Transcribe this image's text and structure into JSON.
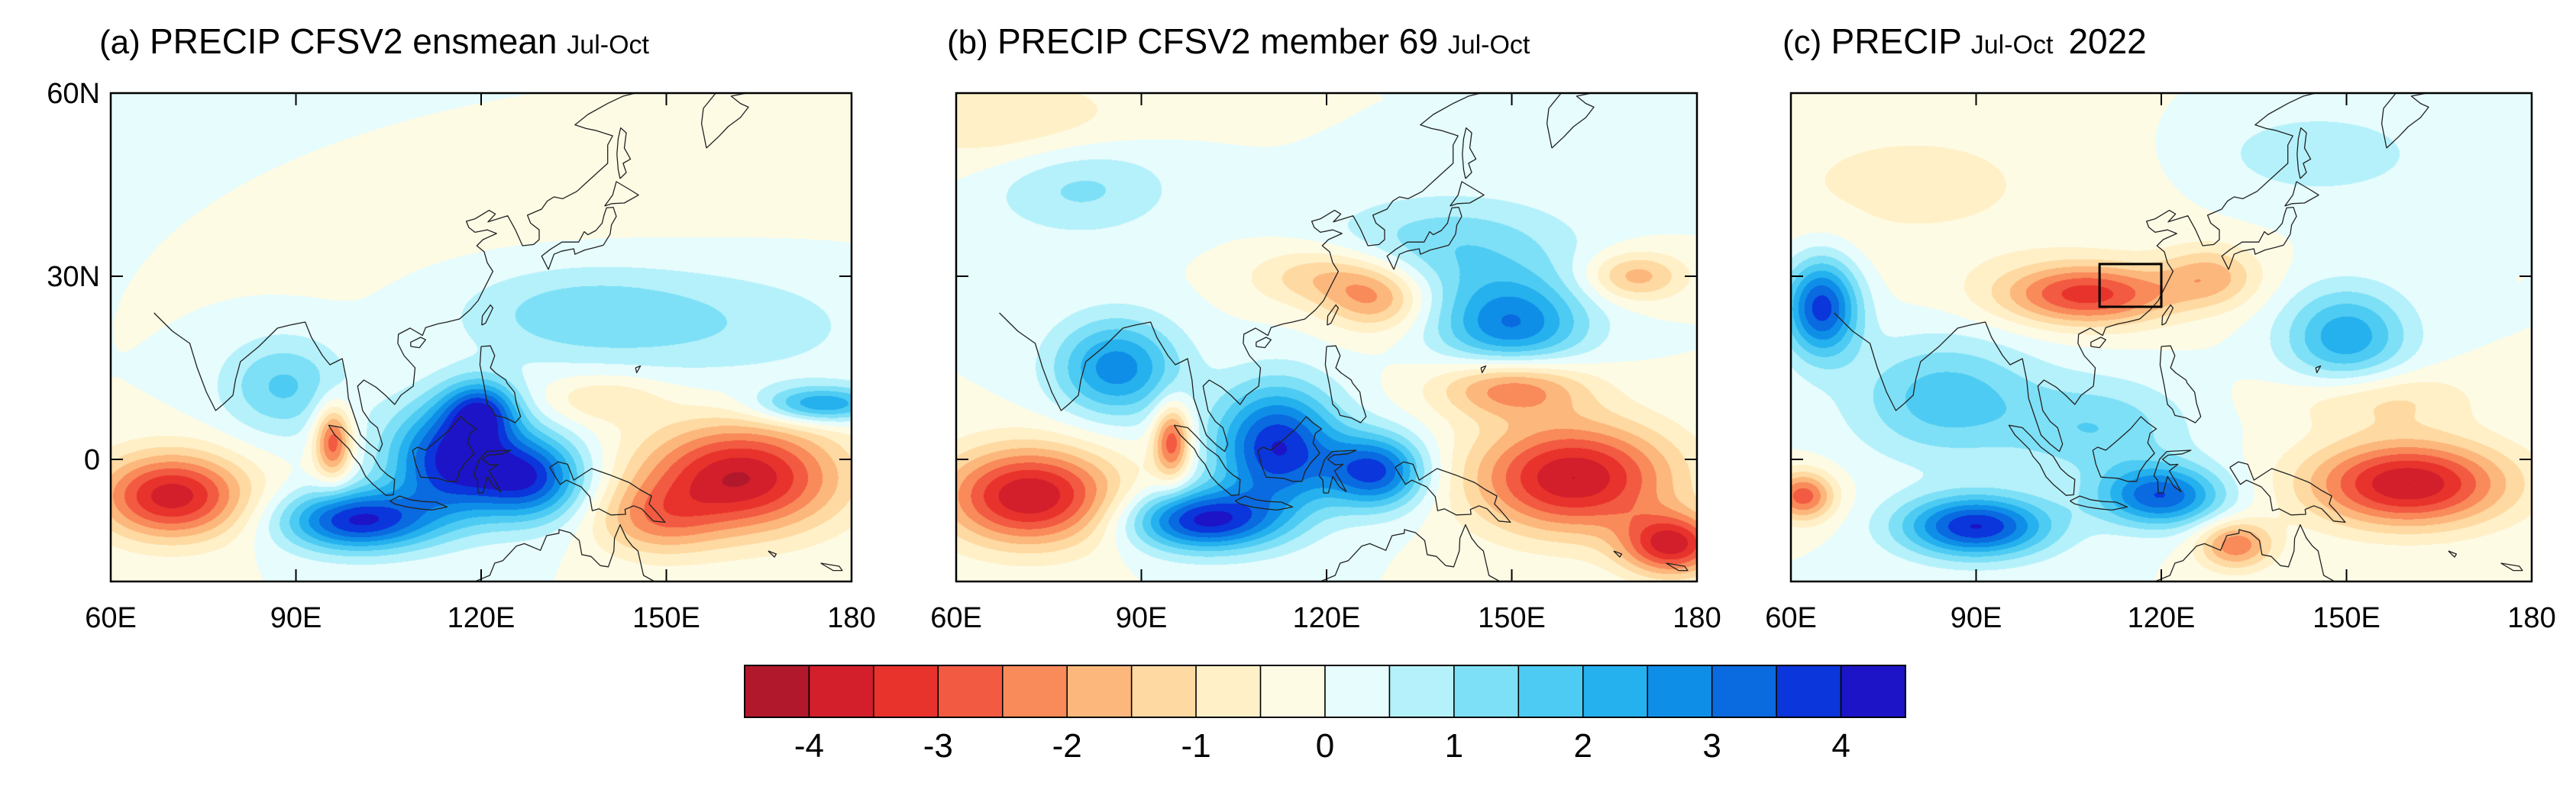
{
  "panels": [
    {
      "id": "a",
      "label": "(a)",
      "title": "PRECIP CFSV2  ensmean",
      "period": "Jul-Oct",
      "year": "",
      "show_lat_labels": true,
      "highlight_box": null,
      "anomaly_blobs": [
        {
          "lon": 60,
          "lat": 60,
          "lon_radius": 90,
          "lat_radius": 25,
          "value": 0.3
        },
        {
          "lon": 120,
          "lat": 45,
          "lon_radius": 60,
          "lat_radius": 20,
          "value": -0.3
        },
        {
          "lon": 135,
          "lat": 24,
          "lon_radius": 20,
          "lat_radius": 8,
          "value": 1.2
        },
        {
          "lon": 160,
          "lat": 22,
          "lon_radius": 25,
          "lat_radius": 10,
          "value": 0.8
        },
        {
          "lon": 70,
          "lat": -6,
          "lon_radius": 12,
          "lat_radius": 7,
          "value": -3.8
        },
        {
          "lon": 96,
          "lat": 3,
          "lon_radius": 3,
          "lat_radius": 6,
          "value": -3.0
        },
        {
          "lon": 100,
          "lat": -10,
          "lon_radius": 12,
          "lat_radius": 5,
          "value": 4.0
        },
        {
          "lon": 115,
          "lat": 0,
          "lon_radius": 10,
          "lat_radius": 9,
          "value": 4.0
        },
        {
          "lon": 128,
          "lat": -3,
          "lon_radius": 9,
          "lat_radius": 7,
          "value": 3.6
        },
        {
          "lon": 120,
          "lat": 8,
          "lon_radius": 6,
          "lat_radius": 5,
          "value": 3.0
        },
        {
          "lon": 88,
          "lat": 12,
          "lon_radius": 10,
          "lat_radius": 8,
          "value": 1.6
        },
        {
          "lon": 162,
          "lat": -3,
          "lon_radius": 16,
          "lat_radius": 9,
          "value": -4.0
        },
        {
          "lon": 148,
          "lat": -10,
          "lon_radius": 10,
          "lat_radius": 6,
          "value": -1.6
        },
        {
          "lon": 175,
          "lat": 9,
          "lon_radius": 10,
          "lat_radius": 3,
          "value": 2.6
        },
        {
          "lon": 140,
          "lat": 10,
          "lon_radius": 10,
          "lat_radius": 4,
          "value": -1.0
        }
      ]
    },
    {
      "id": "b",
      "label": "(b)",
      "title": "PRECIP CFSV2  member 69",
      "period": "Jul-Oct",
      "year": "",
      "show_lat_labels": false,
      "highlight_box": null,
      "anomaly_blobs": [
        {
          "lon": 70,
          "lat": 55,
          "lon_radius": 20,
          "lat_radius": 8,
          "value": -1.0
        },
        {
          "lon": 80,
          "lat": 45,
          "lon_radius": 15,
          "lat_radius": 8,
          "value": 1.2
        },
        {
          "lon": 140,
          "lat": 35,
          "lon_radius": 20,
          "lat_radius": 8,
          "value": 1.4
        },
        {
          "lon": 150,
          "lat": 22,
          "lon_radius": 12,
          "lat_radius": 8,
          "value": 3.0
        },
        {
          "lon": 128,
          "lat": 26,
          "lon_radius": 8,
          "lat_radius": 5,
          "value": -1.8
        },
        {
          "lon": 170,
          "lat": 30,
          "lon_radius": 8,
          "lat_radius": 4,
          "value": -1.8
        },
        {
          "lon": 72,
          "lat": -6,
          "lon_radius": 14,
          "lat_radius": 8,
          "value": -4.0
        },
        {
          "lon": 86,
          "lat": 15,
          "lon_radius": 10,
          "lat_radius": 8,
          "value": 2.8
        },
        {
          "lon": 100,
          "lat": -10,
          "lon_radius": 12,
          "lat_radius": 5,
          "value": 4.0
        },
        {
          "lon": 112,
          "lat": 2,
          "lon_radius": 10,
          "lat_radius": 10,
          "value": 4.0
        },
        {
          "lon": 128,
          "lat": -2,
          "lon_radius": 8,
          "lat_radius": 6,
          "value": 3.6
        },
        {
          "lon": 95,
          "lat": 3,
          "lon_radius": 3,
          "lat_radius": 6,
          "value": -3.0
        },
        {
          "lon": 160,
          "lat": -3,
          "lon_radius": 16,
          "lat_radius": 9,
          "value": -4.0
        },
        {
          "lon": 150,
          "lat": 12,
          "lon_radius": 12,
          "lat_radius": 5,
          "value": -2.6
        },
        {
          "lon": 176,
          "lat": -14,
          "lon_radius": 8,
          "lat_radius": 5,
          "value": -3.6
        },
        {
          "lon": 120,
          "lat": 30,
          "lon_radius": 12,
          "lat_radius": 5,
          "value": -1.6
        }
      ]
    },
    {
      "id": "c",
      "label": "(c)",
      "title": "PRECIP",
      "period": "Jul-Oct",
      "year": "2022",
      "show_lat_labels": false,
      "highlight_box": {
        "lon_min": 110,
        "lon_max": 120,
        "lat_min": 25,
        "lat_max": 32
      },
      "anomaly_blobs": [
        {
          "lon": 80,
          "lat": 45,
          "lon_radius": 35,
          "lat_radius": 15,
          "value": -0.6
        },
        {
          "lon": 145,
          "lat": 50,
          "lon_radius": 20,
          "lat_radius": 8,
          "value": 0.8
        },
        {
          "lon": 108,
          "lat": 27,
          "lon_radius": 14,
          "lat_radius": 5,
          "value": -3.2
        },
        {
          "lon": 128,
          "lat": 30,
          "lon_radius": 8,
          "lat_radius": 5,
          "value": -1.6
        },
        {
          "lon": 65,
          "lat": 25,
          "lon_radius": 6,
          "lat_radius": 8,
          "value": 3.8
        },
        {
          "lon": 150,
          "lat": 20,
          "lon_radius": 10,
          "lat_radius": 8,
          "value": 2.4
        },
        {
          "lon": 85,
          "lat": 10,
          "lon_radius": 15,
          "lat_radius": 10,
          "value": 1.8
        },
        {
          "lon": 110,
          "lat": 5,
          "lon_radius": 14,
          "lat_radius": 8,
          "value": 1.4
        },
        {
          "lon": 90,
          "lat": -11,
          "lon_radius": 12,
          "lat_radius": 5,
          "value": 4.0
        },
        {
          "lon": 120,
          "lat": -6,
          "lon_radius": 10,
          "lat_radius": 5,
          "value": 3.4
        },
        {
          "lon": 160,
          "lat": -4,
          "lon_radius": 16,
          "lat_radius": 7,
          "value": -4.0
        },
        {
          "lon": 132,
          "lat": -14,
          "lon_radius": 6,
          "lat_radius": 4,
          "value": -2.4
        },
        {
          "lon": 155,
          "lat": 10,
          "lon_radius": 15,
          "lat_radius": 5,
          "value": -1.2
        },
        {
          "lon": 62,
          "lat": -6,
          "lon_radius": 5,
          "lat_radius": 4,
          "value": -2.8
        }
      ]
    }
  ],
  "axes": {
    "lon_range": [
      60,
      180
    ],
    "lat_range": [
      -20,
      60
    ],
    "lon_ticks": [
      {
        "value": 60,
        "label": "60E"
      },
      {
        "value": 90,
        "label": "90E"
      },
      {
        "value": 120,
        "label": "120E"
      },
      {
        "value": 150,
        "label": "150E"
      },
      {
        "value": 180,
        "label": "180"
      }
    ],
    "lat_ticks": [
      {
        "value": 60,
        "label": "60N"
      },
      {
        "value": 30,
        "label": "30N"
      },
      {
        "value": 0,
        "label": "0"
      }
    ]
  },
  "colorbar": {
    "levels": [
      -4.5,
      -4,
      -3.5,
      -3,
      -2.5,
      -2,
      -1.5,
      -1,
      -0.5,
      0,
      0.5,
      1,
      1.5,
      2,
      2.5,
      3,
      3.5,
      4,
      4.5
    ],
    "colors": [
      "#b2182b",
      "#d21f2b",
      "#e8332c",
      "#f25a41",
      "#f98a5a",
      "#fcb77c",
      "#fed9a1",
      "#fff0c8",
      "#fefbe5",
      "#e6fcfd",
      "#b5f1fb",
      "#7ee0f6",
      "#4ecbf2",
      "#25b0ee",
      "#0f8ee8",
      "#0a6ae0",
      "#0a36db",
      "#1c14c6"
    ],
    "labels": [
      {
        "value": -4,
        "text": "-4"
      },
      {
        "value": -3,
        "text": "-3"
      },
      {
        "value": -2,
        "text": "-2"
      },
      {
        "value": -1,
        "text": "-1"
      },
      {
        "value": 0,
        "text": "0"
      },
      {
        "value": 1,
        "text": "1"
      },
      {
        "value": 2,
        "text": "2"
      },
      {
        "value": 3,
        "text": "3"
      },
      {
        "value": 4,
        "text": "4"
      }
    ]
  }
}
